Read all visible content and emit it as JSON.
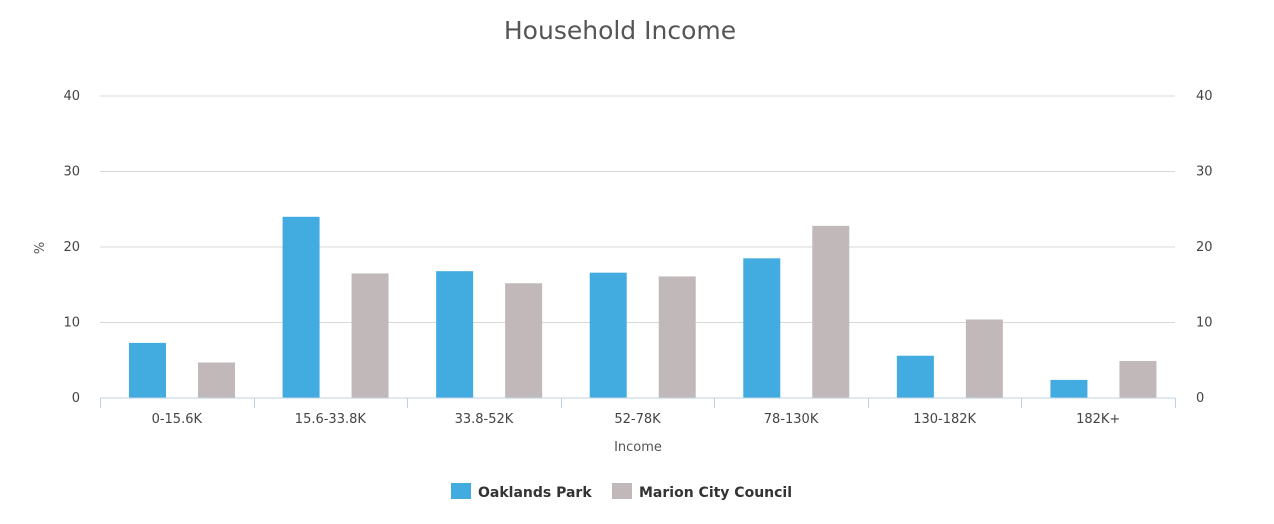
{
  "chart_data": {
    "type": "bar",
    "title": "Household Income",
    "xlabel": "Income",
    "ylabel": "%",
    "ylim": [
      0,
      40
    ],
    "yticks": [
      "0",
      "10",
      "20",
      "30",
      "40"
    ],
    "categories": [
      "0-15.6K",
      "15.6-33.8K",
      "33.8-52K",
      "52-78K",
      "78-130K",
      "130-182K",
      "182K+"
    ],
    "series": [
      {
        "name": "Oaklands Park",
        "color": "#42abe0",
        "values": [
          7.3,
          24.0,
          16.8,
          16.6,
          18.5,
          5.6,
          2.4
        ]
      },
      {
        "name": "Marion City Council",
        "color": "#c1b9b9",
        "values": [
          4.7,
          16.5,
          15.2,
          16.1,
          22.8,
          10.4,
          4.9
        ]
      }
    ],
    "grid": true,
    "secondary_y_axis": true,
    "legend_position": "bottom"
  }
}
